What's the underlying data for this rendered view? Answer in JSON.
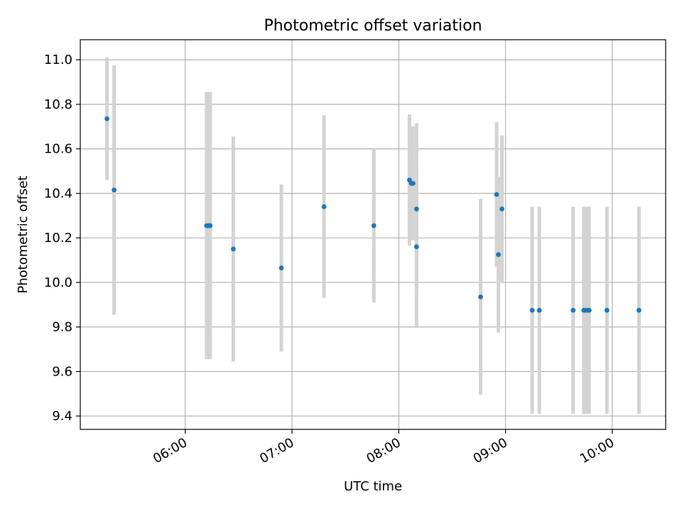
{
  "chart_data": {
    "type": "scatter",
    "title": "Photometric offset variation",
    "xlabel": "UTC time",
    "ylabel": "Photometric offset",
    "x_is_time": true,
    "xlim": [
      "05:01",
      "10:30"
    ],
    "ylim": [
      9.34,
      11.09
    ],
    "x_ticks": [
      "06:00",
      "07:00",
      "08:00",
      "09:00",
      "10:00"
    ],
    "y_ticks": [
      9.4,
      9.6,
      9.8,
      10.0,
      10.2,
      10.4,
      10.6,
      10.8,
      11.0
    ],
    "grid": true,
    "marker_color": "#1f77b4",
    "errorbar_color": "#d3d3d3",
    "points": [
      {
        "t": "05:16",
        "y": 10.735,
        "err": 0.275
      },
      {
        "t": "05:20",
        "y": 10.415,
        "err": 0.56
      },
      {
        "t": "06:12",
        "y": 10.255,
        "err": 0.6
      },
      {
        "t": "06:13",
        "y": 10.255,
        "err": 0.6
      },
      {
        "t": "06:14",
        "y": 10.255,
        "err": 0.6
      },
      {
        "t": "06:27",
        "y": 10.15,
        "err": 0.505
      },
      {
        "t": "06:54",
        "y": 10.065,
        "err": 0.375
      },
      {
        "t": "07:18",
        "y": 10.34,
        "err": 0.41
      },
      {
        "t": "07:46",
        "y": 10.255,
        "err": 0.345
      },
      {
        "t": "08:06",
        "y": 10.46,
        "err": 0.295
      },
      {
        "t": "08:07",
        "y": 10.445,
        "err": 0.255
      },
      {
        "t": "08:08",
        "y": 10.445,
        "err": 0.255
      },
      {
        "t": "08:10",
        "y": 10.16,
        "err": 0.365
      },
      {
        "t": "08:10",
        "y": 10.33,
        "err": 0.385
      },
      {
        "t": "08:46",
        "y": 9.935,
        "err": 0.44
      },
      {
        "t": "08:55",
        "y": 10.395,
        "err": 0.325
      },
      {
        "t": "08:56",
        "y": 10.125,
        "err": 0.35
      },
      {
        "t": "08:58",
        "y": 10.33,
        "err": 0.33
      },
      {
        "t": "09:15",
        "y": 9.875,
        "err": 0.465
      },
      {
        "t": "09:19",
        "y": 9.875,
        "err": 0.465
      },
      {
        "t": "09:38",
        "y": 9.875,
        "err": 0.465
      },
      {
        "t": "09:44",
        "y": 9.875,
        "err": 0.465
      },
      {
        "t": "09:45",
        "y": 9.875,
        "err": 0.465
      },
      {
        "t": "09:46",
        "y": 9.875,
        "err": 0.465
      },
      {
        "t": "09:47",
        "y": 9.875,
        "err": 0.465
      },
      {
        "t": "09:57",
        "y": 9.875,
        "err": 0.465
      },
      {
        "t": "10:15",
        "y": 9.875,
        "err": 0.465
      }
    ]
  }
}
